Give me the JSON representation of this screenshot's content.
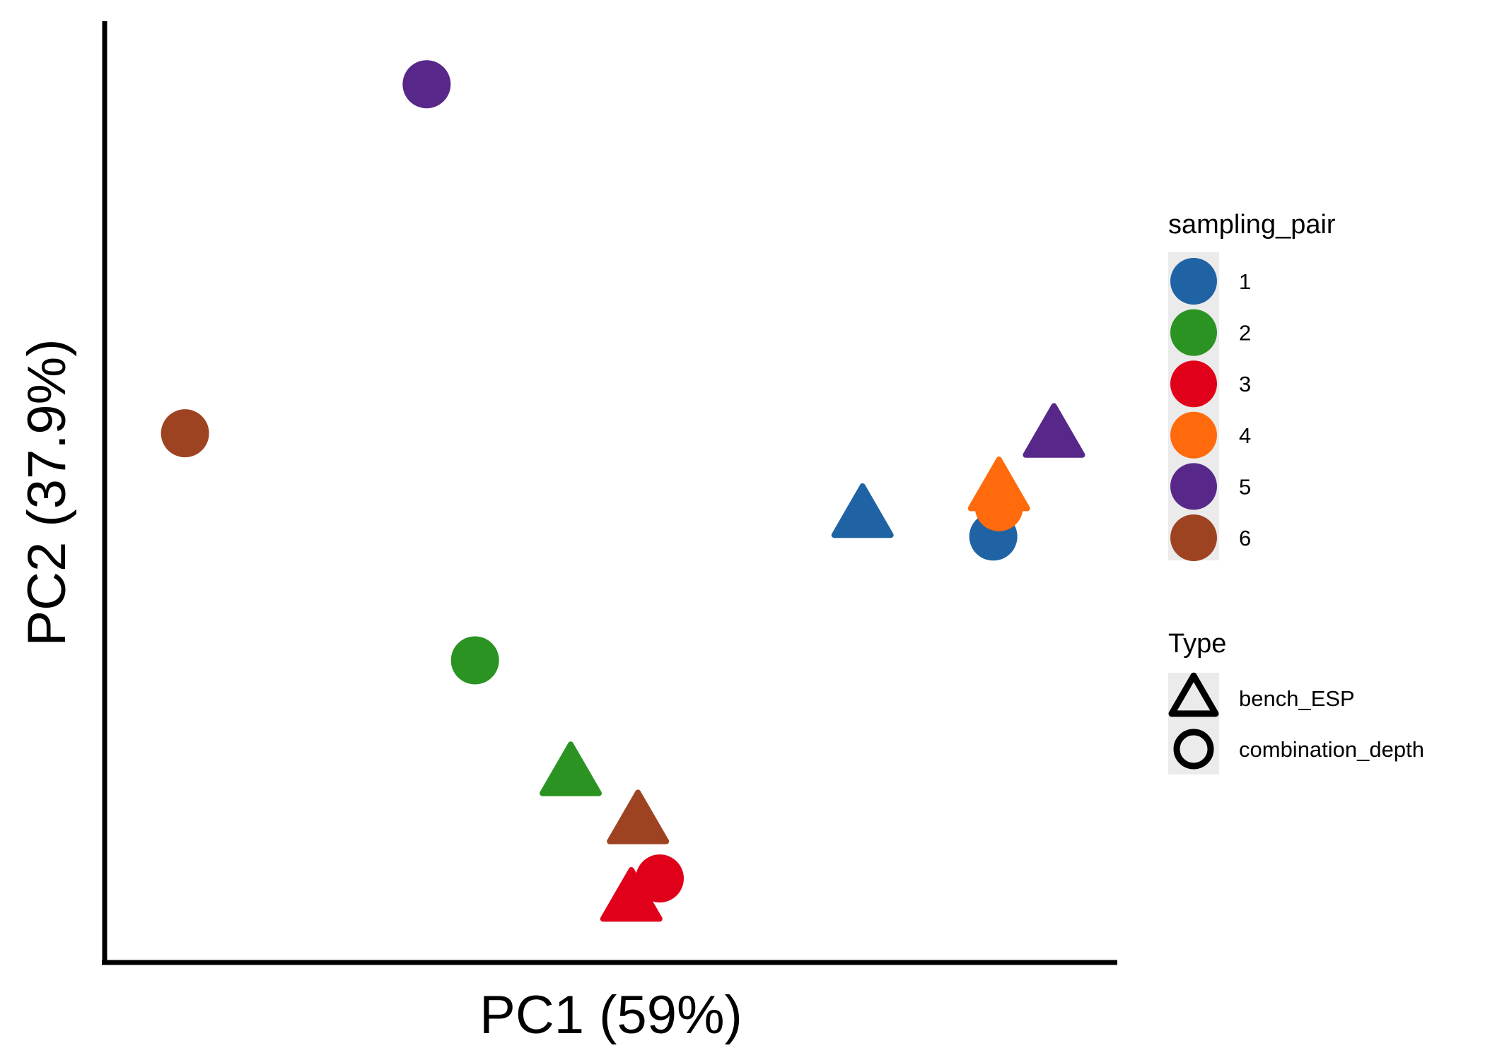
{
  "chart_data": {
    "type": "scatter",
    "title": "",
    "xlabel": "PC1 (59%)",
    "ylabel": "PC2 (37.9%)",
    "axis_ticks": "none",
    "grid": false,
    "legend_position": "right",
    "xlim": [
      0,
      100
    ],
    "ylim": [
      0,
      100
    ],
    "color_legend": {
      "title": "sampling_pair",
      "entries": [
        {
          "label": "1",
          "color": "#1f63a5"
        },
        {
          "label": "2",
          "color": "#2b9322"
        },
        {
          "label": "3",
          "color": "#e0001a"
        },
        {
          "label": "4",
          "color": "#ff6a0d"
        },
        {
          "label": "5",
          "color": "#572889"
        },
        {
          "label": "6",
          "color": "#9e4322"
        }
      ]
    },
    "shape_legend": {
      "title": "Type",
      "entries": [
        {
          "label": "bench_ESP",
          "shape": "triangle"
        },
        {
          "label": "combination_depth",
          "shape": "circle"
        }
      ]
    },
    "points": [
      {
        "x": 30.1,
        "y": 95.3,
        "pair": "5",
        "type": "combination_depth"
      },
      {
        "x": 4.6,
        "y": 56.1,
        "pair": "6",
        "type": "combination_depth"
      },
      {
        "x": 35.2,
        "y": 30.6,
        "pair": "2",
        "type": "combination_depth"
      },
      {
        "x": 45.3,
        "y": 17.5,
        "pair": "2",
        "type": "bench_ESP"
      },
      {
        "x": 52.4,
        "y": 12.1,
        "pair": "6",
        "type": "bench_ESP"
      },
      {
        "x": 51.7,
        "y": 3.4,
        "pair": "3",
        "type": "bench_ESP"
      },
      {
        "x": 54.7,
        "y": 6.1,
        "pair": "3",
        "type": "combination_depth"
      },
      {
        "x": 76.1,
        "y": 46.5,
        "pair": "1",
        "type": "bench_ESP"
      },
      {
        "x": 89.9,
        "y": 44.5,
        "pair": "1",
        "type": "combination_depth"
      },
      {
        "x": 90.5,
        "y": 47.8,
        "pair": "4",
        "type": "combination_depth"
      },
      {
        "x": 90.5,
        "y": 49.5,
        "pair": "4",
        "type": "bench_ESP"
      },
      {
        "x": 96.3,
        "y": 55.5,
        "pair": "5",
        "type": "bench_ESP"
      }
    ]
  }
}
